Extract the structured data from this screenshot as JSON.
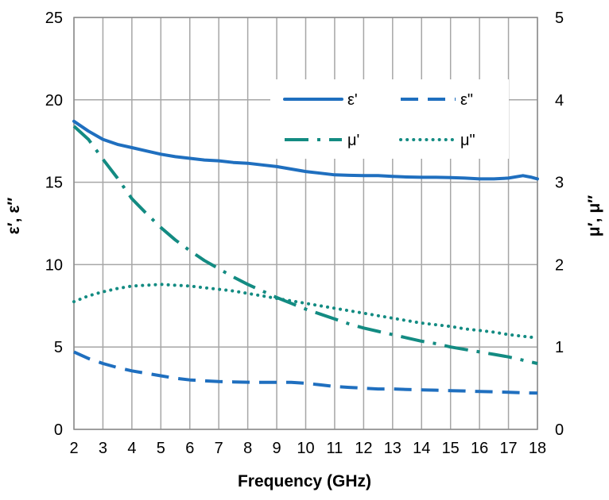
{
  "chart_data": {
    "type": "line",
    "xlabel": "Frequency (GHz)",
    "ylabel_left": "ε′, ε″",
    "ylabel_right": "μ′, μ″",
    "xlim": [
      2,
      18
    ],
    "ylim_left": [
      0,
      25
    ],
    "ylim_right": [
      0,
      5
    ],
    "x_ticks": [
      2,
      3,
      4,
      5,
      6,
      7,
      8,
      9,
      10,
      11,
      12,
      13,
      14,
      15,
      16,
      17,
      18
    ],
    "y_ticks_left": [
      0,
      5,
      10,
      15,
      20,
      25
    ],
    "y_ticks_right": [
      0,
      1,
      2,
      3,
      4,
      5
    ],
    "grid": true,
    "legend_position": "top-right",
    "series": [
      {
        "name": "ε'",
        "axis": "left",
        "style": "solid",
        "color": "#1f6fbf",
        "x": [
          2,
          2.5,
          3,
          3.5,
          4,
          4.5,
          5,
          5.5,
          6,
          6.5,
          7,
          7.5,
          8,
          8.5,
          9,
          9.5,
          10,
          10.5,
          11,
          11.5,
          12,
          12.5,
          13,
          13.5,
          14,
          14.5,
          15,
          15.5,
          16,
          16.5,
          17,
          17.5,
          17.8,
          18
        ],
        "y": [
          18.7,
          18.1,
          17.6,
          17.3,
          17.1,
          16.9,
          16.7,
          16.55,
          16.45,
          16.35,
          16.3,
          16.2,
          16.15,
          16.05,
          15.95,
          15.8,
          15.65,
          15.55,
          15.45,
          15.42,
          15.4,
          15.4,
          15.35,
          15.32,
          15.3,
          15.3,
          15.28,
          15.25,
          15.2,
          15.2,
          15.25,
          15.4,
          15.3,
          15.2
        ]
      },
      {
        "name": "ε\"",
        "axis": "left",
        "style": "dashed",
        "color": "#1f6fbf",
        "x": [
          2,
          2.5,
          3,
          3.5,
          4,
          4.5,
          5,
          5.5,
          6,
          6.5,
          7,
          7.5,
          8,
          8.5,
          9,
          9.5,
          10,
          10.5,
          11,
          11.5,
          12,
          12.5,
          13,
          13.5,
          14,
          14.5,
          15,
          15.5,
          16,
          16.5,
          17,
          17.5,
          18
        ],
        "y": [
          4.7,
          4.3,
          4.0,
          3.75,
          3.55,
          3.4,
          3.25,
          3.1,
          3.0,
          2.95,
          2.9,
          2.88,
          2.86,
          2.85,
          2.85,
          2.85,
          2.8,
          2.7,
          2.6,
          2.55,
          2.5,
          2.45,
          2.45,
          2.42,
          2.4,
          2.38,
          2.35,
          2.33,
          2.3,
          2.28,
          2.25,
          2.22,
          2.2
        ]
      },
      {
        "name": "μ'",
        "axis": "right",
        "style": "dash-dot",
        "color": "#138b82",
        "x": [
          2,
          2.5,
          3,
          3.5,
          4,
          4.5,
          5,
          5.5,
          6,
          6.5,
          7,
          7.5,
          8,
          8.5,
          9,
          9.5,
          10,
          10.5,
          11,
          11.5,
          12,
          12.5,
          13,
          13.5,
          14,
          14.5,
          15,
          15.5,
          16,
          16.5,
          17,
          17.5,
          18
        ],
        "y": [
          3.68,
          3.52,
          3.28,
          3.05,
          2.8,
          2.62,
          2.45,
          2.3,
          2.17,
          2.05,
          1.95,
          1.85,
          1.76,
          1.68,
          1.6,
          1.53,
          1.46,
          1.4,
          1.34,
          1.28,
          1.23,
          1.19,
          1.15,
          1.11,
          1.07,
          1.04,
          1.0,
          0.97,
          0.94,
          0.91,
          0.88,
          0.84,
          0.8
        ]
      },
      {
        "name": "μ\"",
        "axis": "right",
        "style": "dotted",
        "color": "#138b82",
        "x": [
          2,
          2.5,
          3,
          3.5,
          4,
          4.5,
          5,
          5.5,
          6,
          6.5,
          7,
          7.5,
          8,
          8.5,
          9,
          9.5,
          10,
          10.5,
          11,
          11.5,
          12,
          12.5,
          13,
          13.5,
          14,
          14.5,
          15,
          15.5,
          16,
          16.5,
          17,
          17.5,
          18
        ],
        "y": [
          1.55,
          1.62,
          1.67,
          1.71,
          1.74,
          1.75,
          1.76,
          1.75,
          1.74,
          1.72,
          1.7,
          1.68,
          1.65,
          1.62,
          1.59,
          1.56,
          1.53,
          1.5,
          1.47,
          1.44,
          1.41,
          1.38,
          1.35,
          1.32,
          1.29,
          1.27,
          1.25,
          1.22,
          1.2,
          1.18,
          1.15,
          1.13,
          1.11
        ]
      }
    ]
  }
}
